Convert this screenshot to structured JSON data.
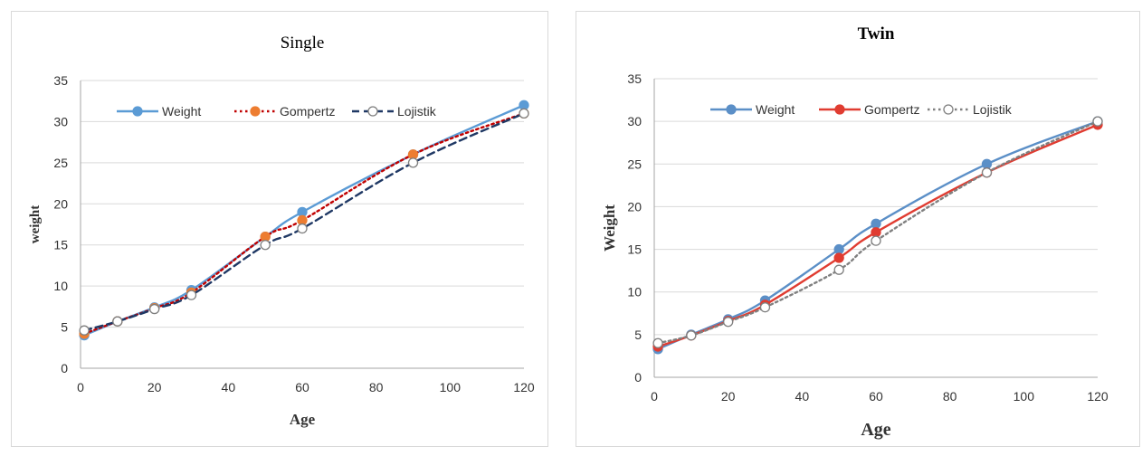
{
  "chart_data": [
    {
      "type": "line",
      "title": "Single",
      "xlabel": "Age",
      "ylabel": "weight",
      "xlim": [
        0,
        120
      ],
      "ylim": [
        0,
        35
      ],
      "xticks": [
        0,
        20,
        40,
        60,
        80,
        100,
        120
      ],
      "yticks": [
        0,
        5,
        10,
        15,
        20,
        25,
        30,
        35
      ],
      "grid": true,
      "legend": "top",
      "series": [
        {
          "name": "Weight",
          "color": "#5b9bd5",
          "style": "solid",
          "marker": "filled",
          "x": [
            1,
            10,
            20,
            30,
            50,
            60,
            90,
            120
          ],
          "y": [
            4.0,
            5.7,
            7.4,
            9.5,
            16.0,
            19.0,
            26.0,
            32.0
          ]
        },
        {
          "name": "Gompertz",
          "color": "#c00000",
          "marker_color": "#ed7d31",
          "style": "dotted",
          "marker": "filled",
          "x": [
            1,
            10,
            20,
            30,
            50,
            60,
            90,
            120
          ],
          "y": [
            4.2,
            5.7,
            7.3,
            9.2,
            16.0,
            18.0,
            26.0,
            31.0
          ]
        },
        {
          "name": "Lojistik",
          "color": "#1f3864",
          "style": "dashed",
          "marker": "open",
          "x": [
            1,
            10,
            20,
            30,
            50,
            60,
            90,
            120
          ],
          "y": [
            4.6,
            5.7,
            7.2,
            8.9,
            15.0,
            17.0,
            25.0,
            31.0
          ]
        }
      ]
    },
    {
      "type": "line",
      "title": "Twin",
      "xlabel": "Age",
      "ylabel": "Weight",
      "xlim": [
        0,
        120
      ],
      "ylim": [
        0,
        35
      ],
      "xticks": [
        0,
        20,
        40,
        60,
        80,
        100,
        120
      ],
      "yticks": [
        0,
        5,
        10,
        15,
        20,
        25,
        30,
        35
      ],
      "grid": true,
      "legend": "top",
      "series": [
        {
          "name": "Weight",
          "color": "#5b8fc7",
          "style": "solid",
          "marker": "filled",
          "x": [
            1,
            10,
            20,
            30,
            50,
            60,
            90,
            120
          ],
          "y": [
            3.3,
            5.0,
            6.8,
            9.0,
            15.0,
            18.0,
            25.0,
            30.0
          ]
        },
        {
          "name": "Gompertz",
          "color": "#e03c31",
          "style": "solid",
          "marker": "filled",
          "x": [
            1,
            10,
            20,
            30,
            50,
            60,
            90,
            120
          ],
          "y": [
            3.6,
            4.9,
            6.6,
            8.5,
            14.0,
            17.0,
            24.0,
            29.6
          ]
        },
        {
          "name": "Lojistik",
          "color": "#808080",
          "style": "dotted",
          "marker": "open",
          "x": [
            1,
            10,
            20,
            30,
            50,
            60,
            90,
            120
          ],
          "y": [
            4.0,
            4.9,
            6.5,
            8.2,
            12.6,
            16.0,
            24.0,
            30.0
          ]
        }
      ]
    }
  ]
}
